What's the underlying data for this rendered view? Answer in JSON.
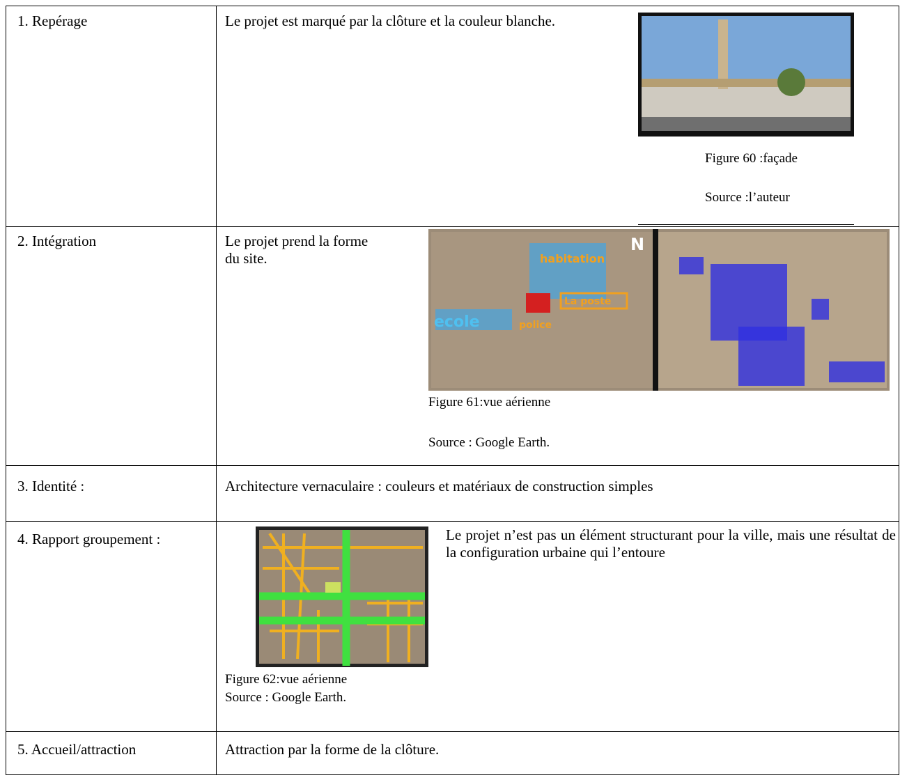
{
  "table": {
    "rows": [
      {
        "label": "1. Repérage",
        "text": "Le projet est marqué par la clôture et la couleur blanche.",
        "figure": {
          "caption": "Figure 60 :façade",
          "source": "Source :l’auteur"
        }
      },
      {
        "label": "2. Intégration",
        "text": "Le projet prend la forme du site.",
        "figure": {
          "caption": "Figure 61:vue aérienne",
          "source": "Source : Google Earth.",
          "map_labels": [
            "habitation",
            "La poste",
            "ecole",
            "police",
            "N"
          ]
        }
      },
      {
        "label": "3. Identité :",
        "text": "Architecture vernaculaire : couleurs et matériaux de construction simples"
      },
      {
        "label": "4. Rapport groupement :",
        "text": "Le projet n’est pas un élément structurant pour la ville, mais une résultat de la configuration urbaine qui l’entoure",
        "figure": {
          "caption": "Figure 62:vue aérienne",
          "source": "Source : Google Earth."
        }
      },
      {
        "label": "5. Accueil/attraction",
        "text": "Attraction par la forme de la clôture."
      }
    ]
  }
}
